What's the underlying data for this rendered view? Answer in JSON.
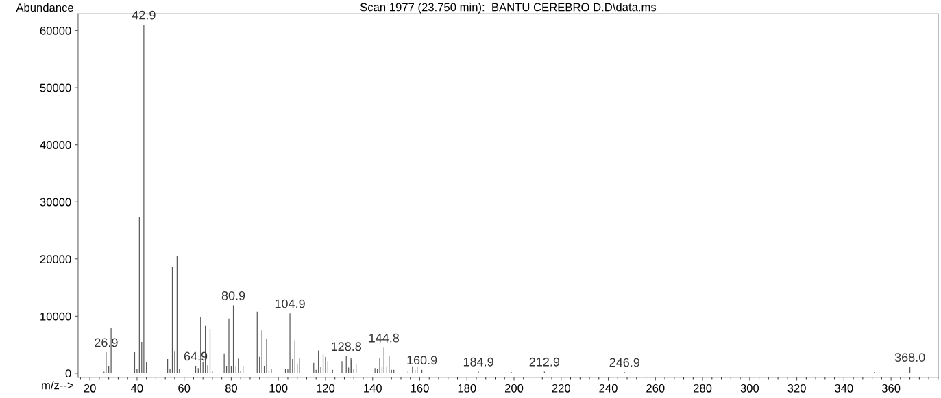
{
  "chart_data": {
    "type": "bar",
    "title": "Scan 1977 (23.750 min):  BANTU CEREBRO D.D\\data.ms",
    "xlabel": "m/z-->",
    "ylabel": "Abundance",
    "color": "#555555",
    "x": [
      26,
      26.9,
      28,
      29,
      39,
      40,
      41,
      42,
      42.9,
      44,
      53,
      54,
      55,
      56,
      57,
      58,
      64.9,
      66,
      67,
      68,
      69,
      70,
      71,
      72,
      77,
      78,
      79,
      80,
      80.9,
      82,
      83,
      84,
      85,
      91,
      92,
      93,
      94,
      95,
      96,
      97,
      103,
      104,
      104.9,
      106,
      107,
      108,
      109,
      115,
      116,
      117,
      118,
      119,
      120,
      121,
      123,
      127,
      128.8,
      129.8,
      130.8,
      131,
      132,
      133,
      141,
      142,
      143,
      144,
      144.8,
      146,
      147,
      148,
      149,
      155,
      156.9,
      158,
      158.9,
      160.9,
      184.9,
      198.9,
      212.9,
      246.9,
      352.9,
      368.0
    ],
    "values": [
      300,
      3700,
      1300,
      7900,
      3700,
      800,
      27300,
      5500,
      61000,
      2000,
      2500,
      800,
      18600,
      3800,
      20500,
      700,
      1300,
      900,
      9800,
      2000,
      8400,
      1400,
      7800,
      300,
      3500,
      1300,
      9600,
      1300,
      11900,
      1300,
      2600,
      400,
      1300,
      10800,
      2900,
      7500,
      1300,
      6000,
      500,
      800,
      800,
      800,
      10500,
      2500,
      5800,
      1600,
      2600,
      1800,
      600,
      4000,
      1100,
      3400,
      2900,
      2100,
      600,
      2100,
      3000,
      1000,
      2700,
      2300,
      700,
      1500,
      900,
      700,
      2700,
      1100,
      4500,
      1200,
      3000,
      600,
      600,
      300,
      1200,
      600,
      1100,
      600,
      300,
      200,
      300,
      200,
      200,
      1100
    ],
    "xlim": [
      15,
      380
    ],
    "ylim": [
      -700,
      62900
    ],
    "xticks": [
      20,
      40,
      60,
      80,
      100,
      120,
      140,
      160,
      180,
      200,
      220,
      240,
      260,
      280,
      300,
      320,
      340,
      360
    ],
    "yticks": [
      0,
      10000,
      20000,
      30000,
      40000,
      50000,
      60000
    ],
    "grid": false,
    "annotations": [
      {
        "text": "26.9",
        "x": 26.9,
        "y": 3700
      },
      {
        "text": "42.9",
        "x": 42.9,
        "y": 61000
      },
      {
        "text": "64.9",
        "x": 64.9,
        "y": 1300
      },
      {
        "text": "80.9",
        "x": 80.9,
        "y": 11900
      },
      {
        "text": "104.9",
        "x": 104.9,
        "y": 10500
      },
      {
        "text": "128.8",
        "x": 128.8,
        "y": 3000
      },
      {
        "text": "144.8",
        "x": 144.8,
        "y": 4500
      },
      {
        "text": "160.9",
        "x": 160.9,
        "y": 600
      },
      {
        "text": "184.9",
        "x": 184.9,
        "y": 300
      },
      {
        "text": "212.9",
        "x": 212.9,
        "y": 300
      },
      {
        "text": "246.9",
        "x": 246.9,
        "y": 200
      },
      {
        "text": "368.0",
        "x": 368.0,
        "y": 1100
      }
    ]
  }
}
